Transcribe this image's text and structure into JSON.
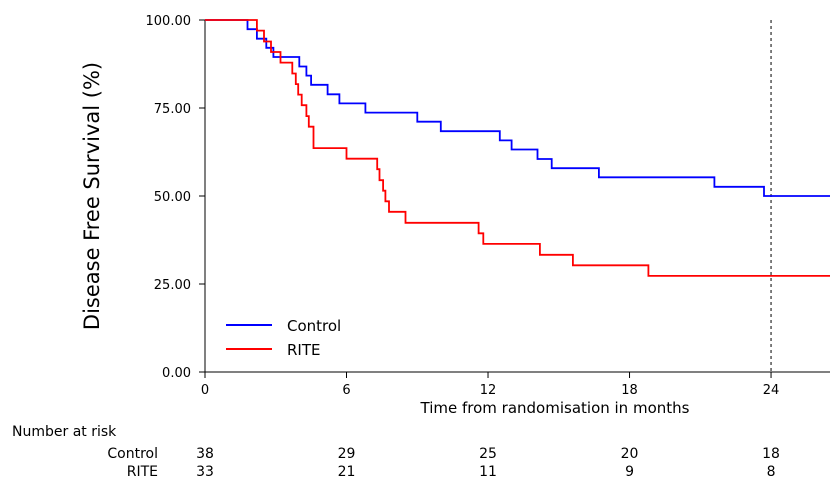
{
  "chart_data": {
    "type": "line",
    "ylabel": "Disease Free Survival (%)",
    "xlabel": "Time from randomisation in months",
    "xlim": [
      0,
      26.5
    ],
    "ylim": [
      0,
      100
    ],
    "x_ticks": [
      0,
      6,
      12,
      18,
      24
    ],
    "x_tick_labels": [
      "0",
      "6",
      "12",
      "18",
      "24"
    ],
    "y_ticks": [
      0,
      25,
      50,
      75,
      100
    ],
    "y_tick_labels": [
      "0.00",
      "25.00",
      "50.00",
      "75.00",
      "100.00"
    ],
    "reference_line_x": 24,
    "grid": false,
    "legend": {
      "placement": "bottom-left",
      "entries": [
        "Control",
        "RITE"
      ]
    },
    "series": [
      {
        "name": "Control",
        "color": "#0000ff",
        "x": [
          0,
          1.8,
          2.2,
          2.6,
          2.9,
          4.0,
          4.3,
          4.5,
          5.2,
          5.7,
          6.8,
          9.0,
          10.0,
          12.5,
          13.0,
          14.1,
          14.7,
          16.7,
          21.6,
          23.7,
          26.5
        ],
        "y": [
          100,
          97.4,
          94.7,
          92.1,
          89.5,
          86.8,
          84.2,
          81.6,
          78.9,
          76.3,
          73.7,
          71.1,
          68.4,
          65.8,
          63.2,
          60.5,
          57.9,
          55.3,
          52.6,
          50.0,
          50.0
        ]
      },
      {
        "name": "RITE",
        "color": "#ff0000",
        "x": [
          0,
          2.2,
          2.5,
          2.8,
          3.2,
          3.7,
          3.85,
          3.95,
          4.1,
          4.3,
          4.4,
          4.6,
          6.0,
          7.3,
          7.4,
          7.55,
          7.65,
          7.8,
          8.5,
          11.6,
          11.8,
          14.2,
          15.6,
          18.8,
          26.5
        ],
        "y": [
          100,
          97.0,
          93.9,
          90.9,
          87.9,
          84.8,
          81.8,
          78.8,
          75.8,
          72.7,
          69.7,
          63.6,
          60.6,
          57.6,
          54.5,
          51.5,
          48.5,
          45.5,
          42.4,
          39.4,
          36.4,
          33.3,
          30.3,
          27.3,
          27.3
        ]
      }
    ],
    "risk_table": {
      "title": "Number at risk",
      "times": [
        0,
        6,
        12,
        18,
        24
      ],
      "rows": [
        {
          "label": "Control",
          "counts": [
            "38",
            "29",
            "25",
            "20",
            "18"
          ]
        },
        {
          "label": "RITE",
          "counts": [
            "33",
            "21",
            "11",
            "9",
            "8"
          ]
        }
      ]
    }
  }
}
